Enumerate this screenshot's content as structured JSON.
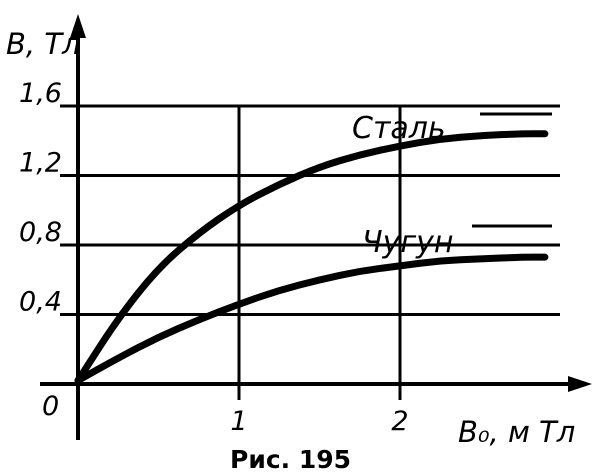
{
  "chart_data": {
    "type": "line",
    "ylabel": "B, Тл",
    "xlabel": "B₀, м Тл",
    "origin_label": "0",
    "x_ticks": [
      1,
      2
    ],
    "x_tick_labels": [
      "1",
      "2"
    ],
    "y_ticks": [
      0.4,
      0.8,
      1.2,
      1.6
    ],
    "y_tick_labels": [
      "0,4",
      "0,8",
      "1,2",
      "1,6"
    ],
    "xlim": [
      0,
      3
    ],
    "ylim": [
      0,
      1.8
    ],
    "grid": true,
    "caption": "Рис. 195",
    "series": [
      {
        "name": "Сталь",
        "x": [
          0,
          0.25,
          0.5,
          0.75,
          1.0,
          1.25,
          1.5,
          1.75,
          2.0,
          2.25,
          2.5,
          2.75,
          2.9
        ],
        "y": [
          0.02,
          0.38,
          0.67,
          0.87,
          1.03,
          1.15,
          1.25,
          1.32,
          1.37,
          1.41,
          1.43,
          1.44,
          1.44
        ]
      },
      {
        "name": "Чугун",
        "x": [
          0,
          0.25,
          0.5,
          0.75,
          1.0,
          1.25,
          1.5,
          1.75,
          2.0,
          2.25,
          2.5,
          2.75,
          2.9
        ],
        "y": [
          0.02,
          0.15,
          0.27,
          0.37,
          0.46,
          0.54,
          0.6,
          0.65,
          0.68,
          0.71,
          0.72,
          0.73,
          0.73
        ]
      }
    ]
  }
}
